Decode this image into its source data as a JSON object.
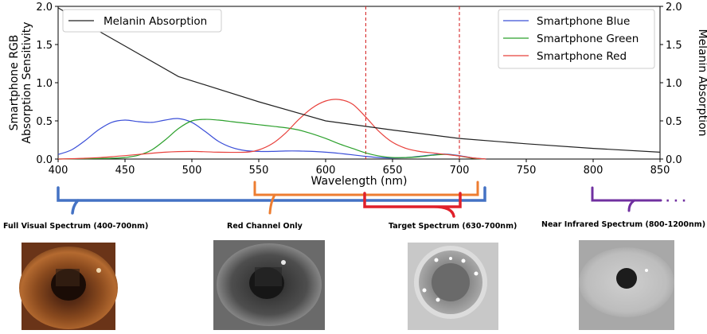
{
  "chart_data": {
    "type": "line",
    "xlabel": "Wavelength (nm)",
    "ylabel_left": "Smartphone RGB Absorption Sensitivity",
    "ylabel_left_lines": [
      "Smartphone RGB",
      "Absorption Sensitivity"
    ],
    "ylabel_right": "Melanin Absorption",
    "xlim": [
      400,
      850
    ],
    "ylim": [
      0,
      2.0
    ],
    "ylim_right": [
      0,
      2.0
    ],
    "x_ticks": [
      400,
      450,
      500,
      550,
      600,
      650,
      700,
      750,
      800,
      850
    ],
    "y_ticks": [
      "0.0",
      "0.5",
      "1.0",
      "1.5",
      "2.0"
    ],
    "grid": false,
    "vlines": [
      630,
      700
    ],
    "vline_color": "#d62728",
    "legend_left": {
      "placement": "top-left",
      "entries": [
        "Melanin Absorption"
      ]
    },
    "legend_right": {
      "placement": "top-right",
      "entries": [
        "Smartphone Blue",
        "Smartphone Green",
        "Smartphone Red"
      ]
    },
    "series": [
      {
        "name": "Smartphone Blue",
        "color": "#3b4fd8",
        "axis": "left",
        "x": [
          400,
          410,
          420,
          430,
          440,
          450,
          460,
          470,
          480,
          490,
          500,
          510,
          520,
          530,
          540,
          550,
          560,
          570,
          580,
          590,
          600,
          610,
          620,
          630,
          640,
          650,
          660,
          670,
          680,
          690,
          700,
          710,
          720
        ],
        "y": [
          0.06,
          0.12,
          0.24,
          0.38,
          0.48,
          0.51,
          0.49,
          0.48,
          0.51,
          0.53,
          0.48,
          0.36,
          0.23,
          0.15,
          0.11,
          0.1,
          0.1,
          0.105,
          0.105,
          0.1,
          0.09,
          0.075,
          0.055,
          0.035,
          0.02,
          0.015,
          0.02,
          0.035,
          0.055,
          0.065,
          0.045,
          0.015,
          0.0
        ]
      },
      {
        "name": "Smartphone Green",
        "color": "#2ca02c",
        "axis": "left",
        "x": [
          400,
          420,
          440,
          450,
          460,
          470,
          480,
          490,
          500,
          510,
          520,
          530,
          540,
          550,
          560,
          570,
          580,
          590,
          600,
          610,
          620,
          630,
          640,
          650,
          660,
          670,
          680,
          690,
          700,
          710,
          720
        ],
        "y": [
          0.0,
          0.005,
          0.01,
          0.02,
          0.05,
          0.12,
          0.25,
          0.4,
          0.5,
          0.52,
          0.51,
          0.49,
          0.47,
          0.45,
          0.43,
          0.41,
          0.38,
          0.33,
          0.27,
          0.2,
          0.14,
          0.08,
          0.04,
          0.02,
          0.02,
          0.03,
          0.05,
          0.06,
          0.04,
          0.01,
          0.0
        ]
      },
      {
        "name": "Smartphone Red",
        "color": "#e8413c",
        "axis": "left",
        "x": [
          400,
          420,
          440,
          460,
          480,
          500,
          520,
          540,
          550,
          560,
          570,
          580,
          590,
          600,
          610,
          620,
          630,
          640,
          650,
          660,
          670,
          680,
          690,
          700,
          710,
          720
        ],
        "y": [
          0.0,
          0.01,
          0.03,
          0.06,
          0.09,
          0.1,
          0.09,
          0.09,
          0.12,
          0.2,
          0.34,
          0.52,
          0.67,
          0.76,
          0.78,
          0.72,
          0.55,
          0.36,
          0.22,
          0.14,
          0.1,
          0.08,
          0.06,
          0.04,
          0.015,
          0.0
        ]
      },
      {
        "name": "Melanin Absorption",
        "color": "#222222",
        "axis": "right",
        "x": [
          400,
          450,
          490,
          550,
          600,
          650,
          700,
          750,
          800,
          850
        ],
        "y": [
          1.98,
          1.48,
          1.08,
          0.75,
          0.5,
          0.38,
          0.27,
          0.2,
          0.14,
          0.09
        ]
      }
    ]
  },
  "annotations": {
    "brackets": [
      {
        "label": "Full Visual Spectrum (400-700nm)",
        "color": "#4472c4"
      },
      {
        "label": "Red Channel Only",
        "color": "#ed7d31"
      },
      {
        "label": "Target Spectrum (630-700nm)",
        "color": "#e0202a"
      },
      {
        "label": "Near Infrared Spectrum (800-1200nm)",
        "color": "#7030a0"
      }
    ],
    "nir_continuation": "· · ·"
  },
  "images": [
    {
      "name": "full-visual-eye-photo",
      "tone": "color"
    },
    {
      "name": "red-channel-eye-photo",
      "tone": "grayscale-dark"
    },
    {
      "name": "target-spectrum-eye-photo",
      "tone": "grayscale-light"
    },
    {
      "name": "near-infrared-eye-photo",
      "tone": "grayscale-light"
    }
  ]
}
